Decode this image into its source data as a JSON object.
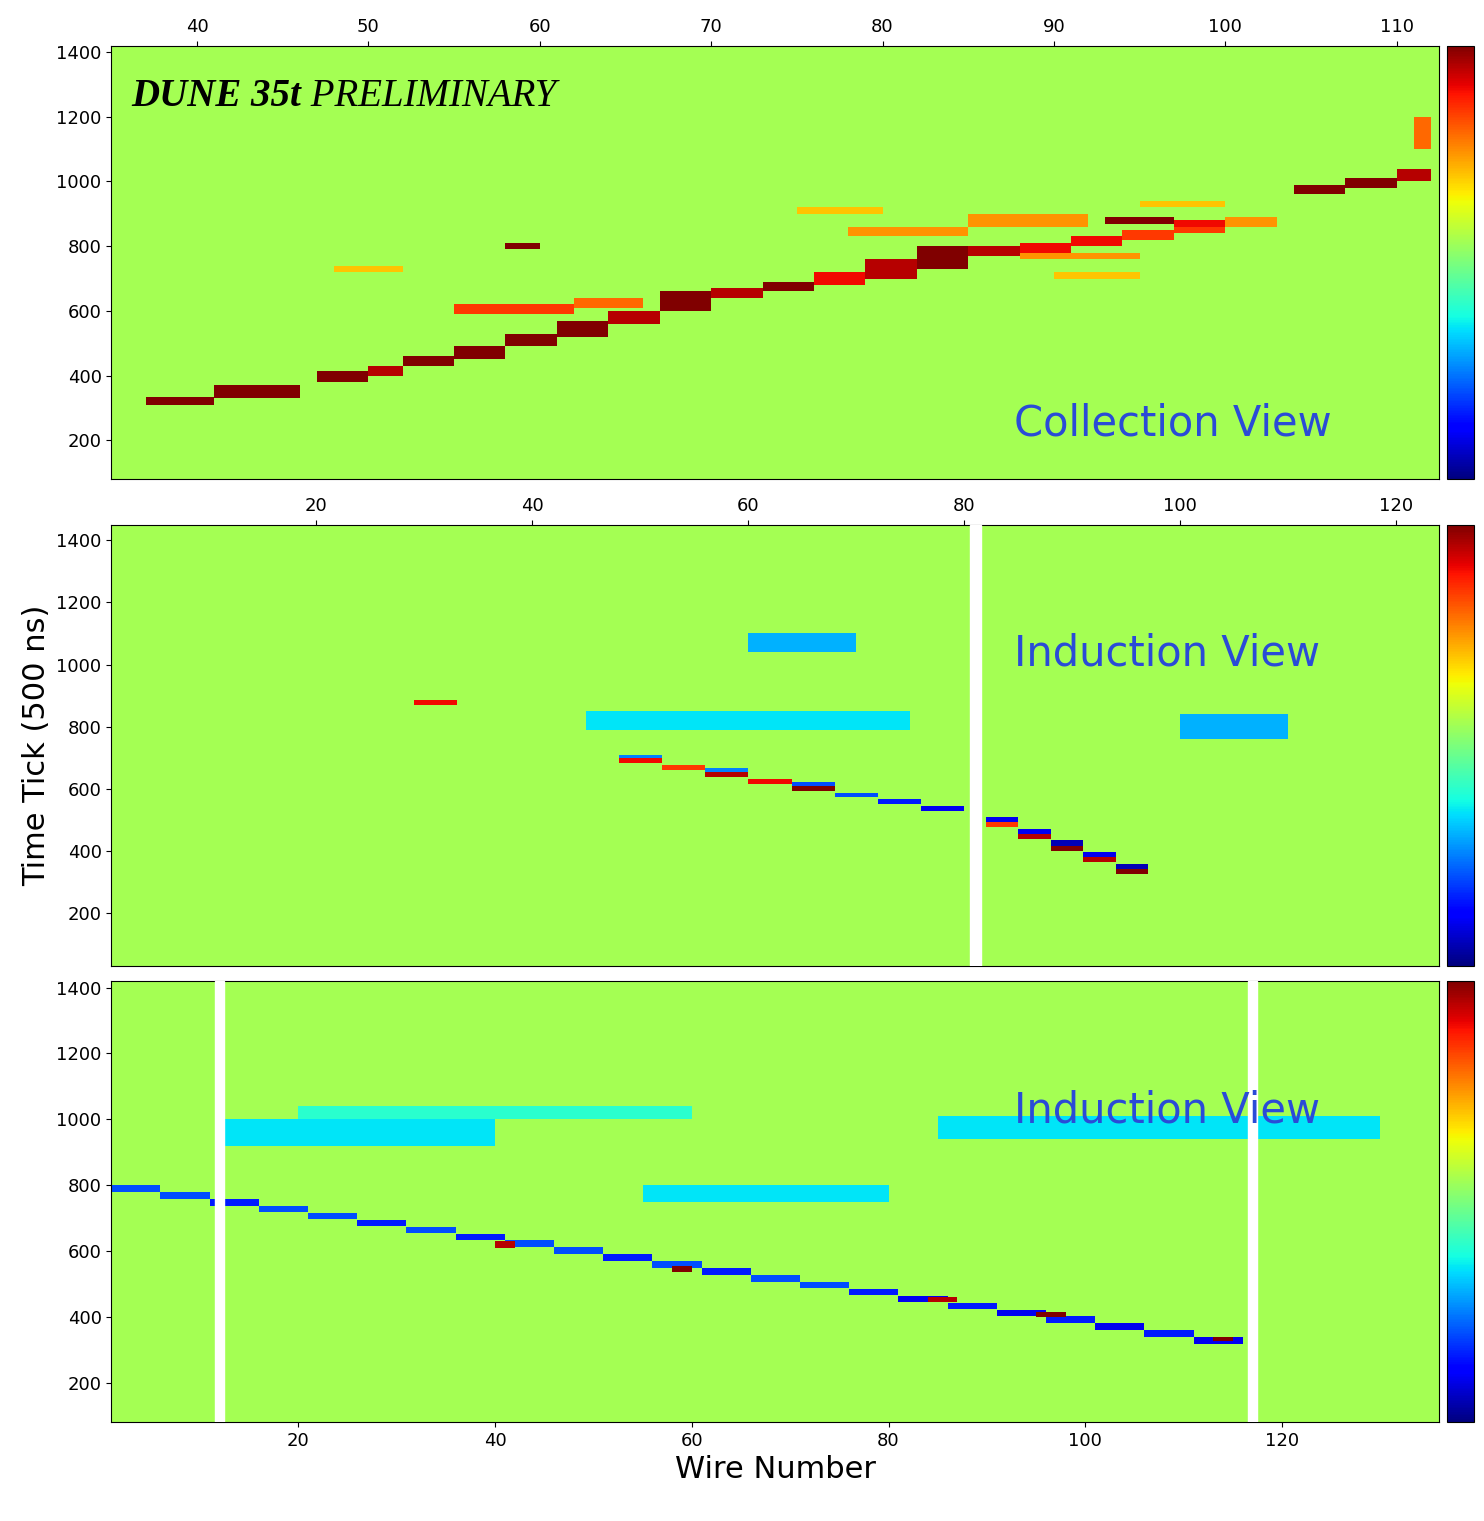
{
  "chart_data": [
    {
      "type": "heatmap",
      "title": "DUNE 35t PRELIMINARY",
      "annotation": "Collection View",
      "xlim": [
        35,
        112.5
      ],
      "xticks": [
        40,
        50,
        60,
        70,
        80,
        90,
        100,
        110
      ],
      "ylim": [
        80,
        1420
      ],
      "yticks": [
        200,
        400,
        600,
        800,
        1000,
        1200,
        1400
      ],
      "colorbar": {
        "range": [
          -1,
          1
        ]
      },
      "background": 0.1,
      "dead_wires": [],
      "cells": [
        [
          37,
          41,
          310,
          335,
          1.0
        ],
        [
          41,
          46,
          330,
          370,
          1.0
        ],
        [
          47,
          50,
          380,
          415,
          1.0
        ],
        [
          50,
          52,
          400,
          430,
          0.9
        ],
        [
          52,
          55,
          430,
          460,
          1.0
        ],
        [
          55,
          58,
          450,
          490,
          1.0
        ],
        [
          58,
          61,
          490,
          530,
          1.0
        ],
        [
          61,
          64,
          520,
          570,
          1.0
        ],
        [
          64,
          67,
          560,
          600,
          0.9
        ],
        [
          67,
          70,
          600,
          660,
          1.0
        ],
        [
          70,
          73,
          640,
          670,
          0.9
        ],
        [
          73,
          76,
          660,
          690,
          1.0
        ],
        [
          76,
          79,
          680,
          720,
          0.8
        ],
        [
          79,
          82,
          700,
          760,
          0.9
        ],
        [
          82,
          85,
          730,
          800,
          1.0
        ],
        [
          85,
          88,
          770,
          800,
          0.9
        ],
        [
          88,
          91,
          780,
          810,
          0.8
        ],
        [
          91,
          94,
          800,
          830,
          0.8
        ],
        [
          94,
          97,
          820,
          850,
          0.7
        ],
        [
          97,
          100,
          840,
          870,
          0.7
        ],
        [
          100,
          103,
          860,
          890,
          0.5
        ],
        [
          93,
          97,
          870,
          890,
          1.0
        ],
        [
          97,
          100,
          860,
          880,
          0.8
        ],
        [
          104,
          107,
          960,
          990,
          1.0
        ],
        [
          107,
          110,
          980,
          1010,
          1.0
        ],
        [
          110,
          112,
          1000,
          1040,
          0.9
        ],
        [
          111,
          112,
          1100,
          1200,
          0.6
        ],
        [
          55,
          62,
          590,
          620,
          0.7
        ],
        [
          62,
          66,
          610,
          640,
          0.6
        ],
        [
          58,
          60,
          790,
          810,
          1.0
        ],
        [
          48,
          52,
          720,
          740,
          0.4
        ],
        [
          78,
          85,
          830,
          860,
          0.5
        ],
        [
          85,
          92,
          860,
          900,
          0.5
        ],
        [
          88,
          95,
          760,
          780,
          0.5
        ],
        [
          75,
          80,
          900,
          920,
          0.4
        ],
        [
          90,
          95,
          700,
          720,
          0.4
        ],
        [
          95,
          100,
          920,
          940,
          0.4
        ]
      ]
    },
    {
      "type": "heatmap",
      "annotation": "Induction View",
      "ylabel": "Time Tick (500 ns)",
      "xlim": [
        1,
        124
      ],
      "xticks": [
        20,
        40,
        60,
        80,
        100,
        120
      ],
      "ylim": [
        30,
        1450
      ],
      "yticks": [
        200,
        400,
        600,
        800,
        1000,
        1200,
        1400
      ],
      "colorbar": {
        "range": [
          -1,
          1
        ]
      },
      "background": 0.1,
      "dead_wires": [
        81
      ],
      "cells": [
        [
          48,
          52,
          682,
          698,
          0.8
        ],
        [
          52,
          56,
          660,
          676,
          0.7
        ],
        [
          56,
          60,
          638,
          654,
          0.9
        ],
        [
          60,
          64,
          616,
          632,
          0.8
        ],
        [
          64,
          68,
          594,
          610,
          1.0
        ],
        [
          68,
          72,
          572,
          588,
          -0.6
        ],
        [
          72,
          76,
          550,
          566,
          -0.7
        ],
        [
          76,
          80,
          528,
          544,
          -0.8
        ],
        [
          48,
          52,
          698,
          710,
          -0.5
        ],
        [
          56,
          60,
          654,
          666,
          -0.5
        ],
        [
          64,
          68,
          610,
          622,
          -0.6
        ],
        [
          82,
          85,
          477,
          493,
          0.7
        ],
        [
          85,
          88,
          439,
          455,
          0.9
        ],
        [
          88,
          91,
          401,
          417,
          1.0
        ],
        [
          91,
          94,
          363,
          379,
          0.9
        ],
        [
          94,
          97,
          325,
          341,
          1.0
        ],
        [
          82,
          85,
          493,
          510,
          -0.8
        ],
        [
          85,
          88,
          455,
          472,
          -0.8
        ],
        [
          88,
          91,
          417,
          434,
          -0.9
        ],
        [
          91,
          94,
          379,
          396,
          -0.8
        ],
        [
          94,
          97,
          341,
          358,
          -0.9
        ],
        [
          60,
          70,
          1040,
          1100,
          -0.4
        ],
        [
          45,
          75,
          790,
          850,
          -0.3
        ],
        [
          100,
          110,
          760,
          840,
          -0.4
        ],
        [
          29,
          33,
          870,
          885,
          0.8
        ]
      ]
    },
    {
      "type": "heatmap",
      "annotation": "Induction View",
      "xlabel": "Wire Number",
      "xlim": [
        1,
        136
      ],
      "xticks": [
        20,
        40,
        60,
        80,
        100,
        120
      ],
      "ylim": [
        80,
        1420
      ],
      "yticks": [
        200,
        400,
        600,
        800,
        1000,
        1200,
        1400
      ],
      "colorbar": {
        "range": [
          -1,
          1
        ]
      },
      "background": 0.1,
      "dead_wires": [
        12,
        117
      ],
      "cells": [
        [
          1,
          6,
          780,
          800,
          -0.6
        ],
        [
          6,
          11,
          759,
          779,
          -0.6
        ],
        [
          11,
          16,
          738,
          758,
          -0.7
        ],
        [
          16,
          21,
          717,
          737,
          -0.6
        ],
        [
          21,
          26,
          696,
          716,
          -0.6
        ],
        [
          26,
          31,
          675,
          695,
          -0.7
        ],
        [
          31,
          36,
          654,
          674,
          -0.6
        ],
        [
          36,
          41,
          633,
          653,
          -0.7
        ],
        [
          41,
          46,
          612,
          632,
          -0.6
        ],
        [
          46,
          51,
          591,
          611,
          -0.6
        ],
        [
          51,
          56,
          570,
          590,
          -0.7
        ],
        [
          56,
          61,
          549,
          569,
          -0.6
        ],
        [
          61,
          66,
          528,
          548,
          -0.7
        ],
        [
          66,
          71,
          507,
          527,
          -0.6
        ],
        [
          71,
          76,
          486,
          506,
          -0.6
        ],
        [
          76,
          81,
          465,
          485,
          -0.7
        ],
        [
          81,
          86,
          444,
          464,
          -0.8
        ],
        [
          86,
          91,
          423,
          443,
          -0.7
        ],
        [
          91,
          96,
          402,
          422,
          -0.8
        ],
        [
          96,
          101,
          381,
          401,
          -0.7
        ],
        [
          101,
          106,
          360,
          380,
          -0.8
        ],
        [
          106,
          111,
          339,
          359,
          -0.7
        ],
        [
          111,
          116,
          318,
          338,
          -0.8
        ],
        [
          40,
          42,
          610,
          630,
          0.9
        ],
        [
          58,
          60,
          535,
          555,
          1.0
        ],
        [
          84,
          87,
          445,
          460,
          0.9
        ],
        [
          95,
          98,
          400,
          415,
          1.0
        ],
        [
          113,
          115,
          325,
          340,
          1.0
        ],
        [
          12,
          40,
          920,
          1000,
          -0.3
        ],
        [
          55,
          80,
          750,
          800,
          -0.3
        ],
        [
          85,
          130,
          940,
          1010,
          -0.3
        ],
        [
          20,
          60,
          1000,
          1040,
          -0.2
        ]
      ]
    }
  ]
}
